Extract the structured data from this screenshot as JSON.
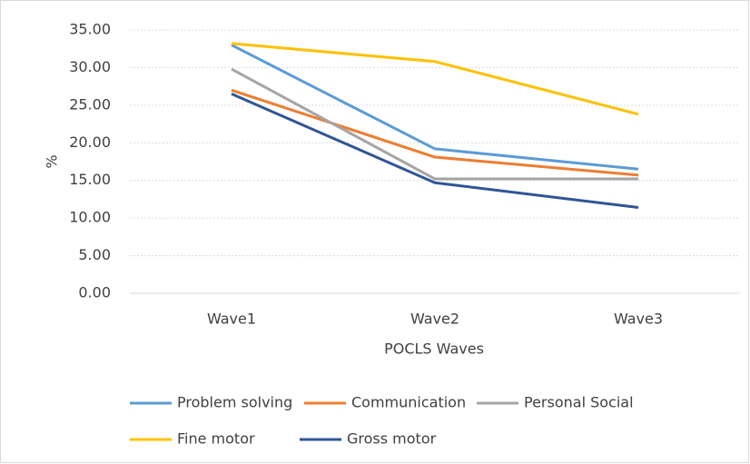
{
  "chart_data": {
    "type": "line",
    "x_label": "POCLS Waves",
    "y_label": "%",
    "categories": [
      "Wave1",
      "Wave2",
      "Wave3"
    ],
    "series": [
      {
        "name": "Problem solving",
        "color": "#5b9bd5",
        "values": [
          33.0,
          19.2,
          16.5
        ]
      },
      {
        "name": "Communication",
        "color": "#ed7d31",
        "values": [
          27.0,
          18.1,
          15.7
        ]
      },
      {
        "name": "Personal Social",
        "color": "#a5a5a5",
        "values": [
          29.8,
          15.2,
          15.2
        ]
      },
      {
        "name": "Fine motor",
        "color": "#ffc000",
        "values": [
          33.2,
          30.8,
          23.8
        ]
      },
      {
        "name": "Gross motor",
        "color": "#2f5597",
        "values": [
          26.5,
          14.7,
          11.4
        ]
      }
    ],
    "ylim": [
      0,
      35
    ],
    "yticks": [
      {
        "value": 0,
        "label": "0.00"
      },
      {
        "value": 5,
        "label": "5.00"
      },
      {
        "value": 10,
        "label": "10.00"
      },
      {
        "value": 15,
        "label": "15.00"
      },
      {
        "value": 20,
        "label": "20.00"
      },
      {
        "value": 25,
        "label": "25.00"
      },
      {
        "value": 30,
        "label": "30.00"
      },
      {
        "value": 35,
        "label": "35.00"
      }
    ],
    "grid": true,
    "legend": "bottom"
  }
}
